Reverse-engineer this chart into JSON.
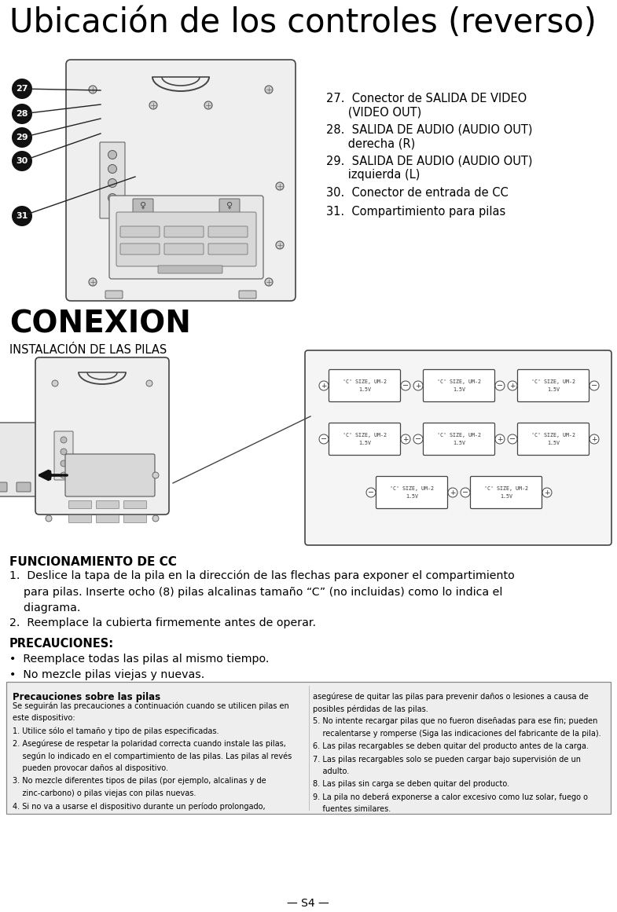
{
  "title": "Ubicación de los controles (reverso)",
  "section1_header": "CONEXION",
  "section1_sub": "INSTALACIÓN DE LAS PILAS",
  "func_header": "FUNCIONAMIENTO DE CC",
  "func_text1": "1.  Deslice la tapa de la pila en la dirección de las flechas para exponer el compartimiento\n    para pilas. Inserte ocho (8) pilas alcalinas tamaño “C” (no incluidas) como lo indica el\n    diagrama.",
  "func_text2": "2.  Reemplace la cubierta firmemente antes de operar.",
  "precautions_header": "PRECAUCIONES:",
  "precautions_items": [
    "•  Reemplace todas las pilas al mismo tiempo.",
    "•  No mezcle pilas viejas y nuevas."
  ],
  "right_labels_27a": "27.  Conector de SALIDA DE VIDEO",
  "right_labels_27b": "      (VIDEO OUT)",
  "right_labels_28a": "28.  SALIDA DE AUDIO (AUDIO OUT)",
  "right_labels_28b": "      derecha (R)",
  "right_labels_29a": "29.  SALIDA DE AUDIO (AUDIO OUT)",
  "right_labels_29b": "      izquierda (L)",
  "right_labels_30": "30.  Conector de entrada de CC",
  "right_labels_31": "31.  Compartimiento para pilas",
  "circle_labels": [
    "27",
    "28",
    "29",
    "30",
    "31"
  ],
  "box_header": "Precauciones sobre las pilas",
  "box_left_col": [
    "Se seguirán las precauciones a continuación cuando se utilicen pilas en",
    "este dispositivo:",
    "1. Utilice sólo el tamaño y tipo de pilas especificadas.",
    "2. Asegúrese de respetar la polaridad correcta cuando instale las pilas,",
    "    según lo indicado en el compartimiento de las pilas. Las pilas al revés",
    "    pueden provocar daños al dispositivo.",
    "3. No mezcle diferentes tipos de pilas (por ejemplo, alcalinas y de",
    "    zinc-carbono) o pilas viejas con pilas nuevas.",
    "4. Si no va a usarse el dispositivo durante un período prolongado,"
  ],
  "box_right_col": [
    "asegúrese de quitar las pilas para prevenir daños o lesiones a causa de",
    "posibles pérdidas de las pilas.",
    "5. No intente recargar pilas que no fueron diseñadas para ese fin; pueden",
    "    recalentarse y romperse (Siga las indicaciones del fabricante de la pila).",
    "6. Las pilas recargables se deben quitar del producto antes de la carga.",
    "7. Las pilas recargables solo se pueden cargar bajo supervisión de un",
    "    adulto.",
    "8. Las pilas sin carga se deben quitar del producto.",
    "9. La pila no deberá exponerse a calor excesivo como luz solar, fuego o",
    "    fuentes similares."
  ],
  "footer": "— S4 —",
  "bg_color": "#ffffff",
  "text_color": "#000000",
  "box_bg": "#eeeeee"
}
